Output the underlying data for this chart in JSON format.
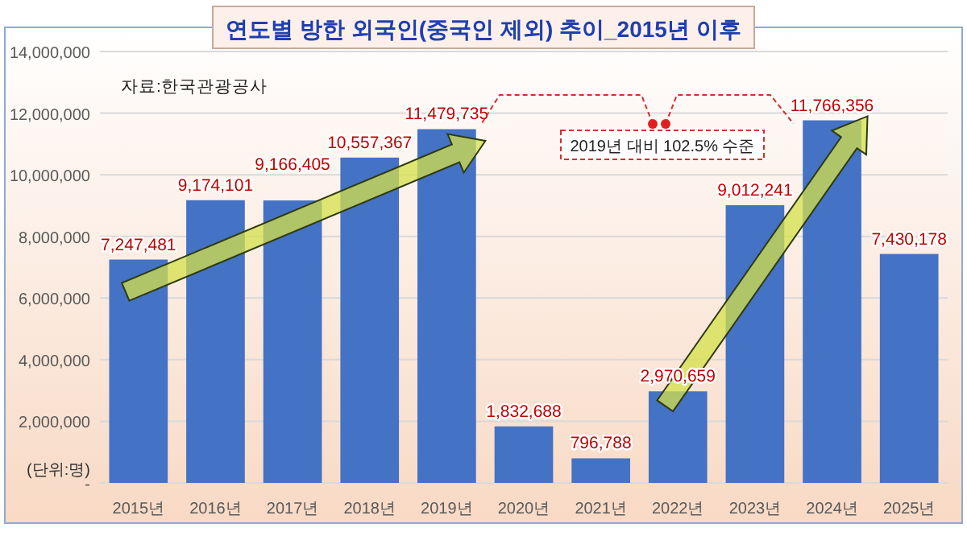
{
  "chart_data": {
    "type": "bar",
    "title": "연도별 방한 외국인(중국인 제외) 추이_2015년 이후",
    "categories": [
      "2015년",
      "2016년",
      "2017년",
      "2018년",
      "2019년",
      "2020년",
      "2021년",
      "2022년",
      "2023년",
      "2024년",
      "2025년"
    ],
    "values": [
      7247481,
      9174101,
      9166405,
      10557367,
      11479735,
      1832688,
      796788,
      2970659,
      9012241,
      11766356,
      7430178
    ],
    "color": "#4472c4",
    "ylim": [
      0,
      14000000
    ],
    "yticks": [
      {
        "value": 0,
        "label": "-"
      },
      {
        "value": 2000000,
        "label": "2,000,000"
      },
      {
        "value": 4000000,
        "label": "4,000,000"
      },
      {
        "value": 6000000,
        "label": "6,000,000"
      },
      {
        "value": 8000000,
        "label": "8,000,000"
      },
      {
        "value": 10000000,
        "label": "10,000,000"
      },
      {
        "value": 12000000,
        "label": "12,000,000"
      },
      {
        "value": 14000000,
        "label": "14,000,000"
      }
    ],
    "grid": "y",
    "value_labels": [
      "7,247,481",
      "9,174,101",
      "9,166,405",
      "10,557,367",
      "11,479,735",
      "1,832,688",
      "796,788",
      "2,970,659",
      "9,012,241",
      "11,766,356",
      "7,430,178"
    ],
    "annotations": [
      "자료:한국관광공사",
      "(단위:명)",
      "2019년 대비 102.5% 수준"
    ]
  }
}
